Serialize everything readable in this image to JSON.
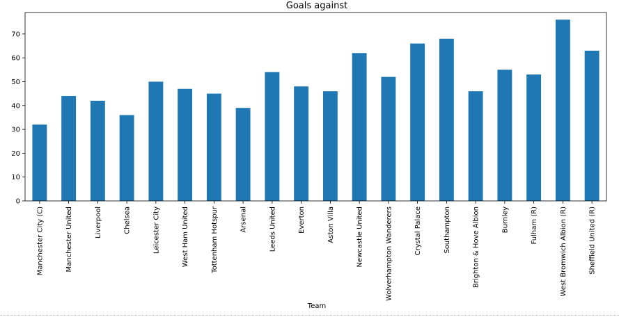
{
  "chart_data": {
    "type": "bar",
    "title": "Goals against",
    "xlabel": "Team",
    "ylabel": "",
    "ylim": [
      0,
      79
    ],
    "yticks": [
      0,
      10,
      20,
      30,
      40,
      50,
      60,
      70
    ],
    "grid": false,
    "legend": "none",
    "bar_color": "#1f77b4",
    "categories": [
      "Manchester City (C)",
      "Manchester United",
      "Liverpool",
      "Chelsea",
      "Leicester City",
      "West Ham United",
      "Tottenham Hotspur",
      "Arsenal",
      "Leeds United",
      "Everton",
      "Aston Villa",
      "Newcastle United",
      "Wolverhampton Wanderers",
      "Crystal Palace",
      "Southampton",
      "Brighton & Hove Albion",
      "Burnley",
      "Fulham (R)",
      "West Bromwich Albion (R)",
      "Sheffield United (R)"
    ],
    "values": [
      32,
      44,
      42,
      36,
      50,
      47,
      45,
      39,
      54,
      48,
      46,
      62,
      52,
      66,
      68,
      46,
      55,
      53,
      76,
      63
    ]
  }
}
